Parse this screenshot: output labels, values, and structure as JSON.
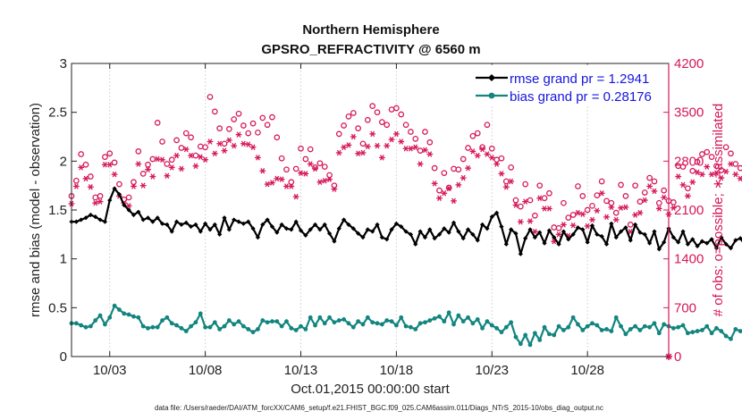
{
  "chart_data": {
    "type": "line",
    "title": [
      "Northern Hemisphere",
      "GPSRO_REFRACTIVITY @ 6560 m"
    ],
    "xlabel": "Oct.01,2015 00:00:00 start",
    "ylabel_left": "rmse and bias (model - observation)",
    "ylabel_right": "# of obs: o=possible; ∗=assimilated",
    "footnote": "data file: /Users/raeder/DAI/ATM_forcXX/CAM6_setup/f.e21.FHIST_BGC.f09_025.CAM6assim.011/Diags_NTrS_2015-10/obs_diag_output.nc",
    "x_range": [
      1.0,
      32.25
    ],
    "ylim_left": [
      0,
      3
    ],
    "ylim_right": [
      0,
      4200
    ],
    "x_ticks": [
      3,
      8,
      13,
      18,
      23,
      28
    ],
    "x_tick_labels": [
      "10/03",
      "10/08",
      "10/13",
      "10/18",
      "10/23",
      "10/28"
    ],
    "y_ticks_left": [
      0,
      0.5,
      1,
      1.5,
      2,
      2.5,
      3
    ],
    "y_tick_labels_left": [
      "0",
      "0.5",
      "1",
      "1.5",
      "2",
      "2.5",
      "3"
    ],
    "y_ticks_right": [
      0,
      700,
      1400,
      2100,
      2800,
      3500,
      4200
    ],
    "y_tick_labels_right": [
      "0",
      "700",
      "1400",
      "2100",
      "2800",
      "3500",
      "4200"
    ],
    "legend_location": "top-right",
    "x_start": 1.0,
    "x_step": 0.25,
    "series": [
      {
        "name": "rmse",
        "legend": "rmse grand pr = 1.2941",
        "color": "#000000",
        "marker": "diamond",
        "values": [
          1.38,
          1.38,
          1.4,
          1.42,
          1.45,
          1.43,
          1.4,
          1.38,
          1.6,
          1.72,
          1.66,
          1.55,
          1.5,
          1.45,
          1.48,
          1.4,
          1.42,
          1.38,
          1.42,
          1.36,
          1.35,
          1.28,
          1.38,
          1.35,
          1.37,
          1.33,
          1.35,
          1.28,
          1.36,
          1.3,
          1.35,
          1.25,
          1.42,
          1.3,
          1.4,
          1.38,
          1.36,
          1.38,
          1.31,
          1.22,
          1.35,
          1.4,
          1.33,
          1.27,
          1.35,
          1.31,
          1.3,
          1.38,
          1.29,
          1.24,
          1.3,
          1.35,
          1.3,
          1.35,
          1.26,
          1.18,
          1.31,
          1.4,
          1.35,
          1.31,
          1.26,
          1.22,
          1.3,
          1.28,
          1.35,
          1.22,
          1.2,
          1.3,
          1.36,
          1.33,
          1.28,
          1.25,
          1.15,
          1.28,
          1.22,
          1.3,
          1.21,
          1.25,
          1.31,
          1.27,
          1.37,
          1.28,
          1.21,
          1.3,
          1.25,
          1.19,
          1.35,
          1.31,
          1.43,
          1.47,
          1.33,
          1.15,
          1.3,
          1.26,
          1.05,
          1.21,
          1.3,
          1.22,
          1.27,
          1.16,
          1.29,
          1.22,
          1.15,
          1.28,
          1.2,
          1.25,
          1.32,
          1.3,
          1.17,
          1.34,
          1.25,
          1.23,
          1.15,
          1.36,
          1.22,
          1.28,
          1.32,
          1.19,
          1.35,
          1.27,
          1.25,
          1.16,
          1.28,
          1.1,
          1.17,
          1.31,
          1.22,
          1.17,
          1.28,
          1.15,
          1.2,
          1.13,
          1.18,
          1.16,
          1.2,
          1.11,
          1.22,
          1.15,
          1.11,
          1.19,
          1.21,
          1.14,
          1.16,
          1.08,
          1.23,
          1.15,
          1.12,
          1.07,
          1.17,
          1.12,
          1.14,
          1.16,
          1.23,
          1.16,
          1.2,
          1.11,
          1.06,
          1.05
        ]
      },
      {
        "name": "bias",
        "legend": "bias grand pr = 0.28176",
        "color": "#12857f",
        "marker": "circle",
        "values": [
          0.34,
          0.34,
          0.32,
          0.3,
          0.31,
          0.37,
          0.42,
          0.33,
          0.4,
          0.52,
          0.48,
          0.44,
          0.43,
          0.41,
          0.4,
          0.31,
          0.29,
          0.3,
          0.3,
          0.37,
          0.4,
          0.34,
          0.32,
          0.29,
          0.26,
          0.31,
          0.35,
          0.44,
          0.3,
          0.3,
          0.35,
          0.28,
          0.31,
          0.37,
          0.33,
          0.36,
          0.31,
          0.28,
          0.25,
          0.28,
          0.37,
          0.35,
          0.36,
          0.36,
          0.31,
          0.36,
          0.29,
          0.27,
          0.31,
          0.28,
          0.4,
          0.32,
          0.4,
          0.34,
          0.4,
          0.35,
          0.37,
          0.38,
          0.34,
          0.3,
          0.36,
          0.33,
          0.4,
          0.35,
          0.34,
          0.33,
          0.37,
          0.36,
          0.32,
          0.4,
          0.31,
          0.3,
          0.28,
          0.34,
          0.35,
          0.37,
          0.39,
          0.41,
          0.36,
          0.45,
          0.33,
          0.42,
          0.36,
          0.4,
          0.34,
          0.38,
          0.29,
          0.36,
          0.32,
          0.29,
          0.25,
          0.3,
          0.35,
          0.2,
          0.13,
          0.22,
          0.12,
          0.24,
          0.17,
          0.3,
          0.23,
          0.22,
          0.31,
          0.27,
          0.3,
          0.4,
          0.33,
          0.27,
          0.31,
          0.34,
          0.32,
          0.27,
          0.28,
          0.26,
          0.4,
          0.31,
          0.23,
          0.28,
          0.31,
          0.27,
          0.31,
          0.3,
          0.34,
          0.24,
          0.33,
          0.31,
          0.29,
          0.3,
          0.32,
          0.24,
          0.25,
          0.26,
          0.27,
          0.31,
          0.24,
          0.29,
          0.26,
          0.21,
          0.18,
          0.28,
          0.26,
          0.24,
          0.21,
          0.22,
          0.28,
          0.31,
          0.22,
          0.34,
          0.29,
          0.3,
          0.27,
          0.32,
          0.25,
          0.23,
          0.28,
          0.29,
          0.31,
          0.33
        ]
      },
      {
        "name": "possible",
        "axis": "right",
        "color": "#d6175a",
        "marker": "circle-open",
        "values": [
          2300,
          2520,
          2900,
          2750,
          2580,
          2280,
          2300,
          2860,
          2910,
          2780,
          2470,
          2250,
          2280,
          2500,
          2940,
          2620,
          2750,
          2830,
          3350,
          3080,
          2760,
          2820,
          3100,
          2990,
          3200,
          3140,
          2880,
          3010,
          3000,
          3720,
          3510,
          3270,
          3050,
          3260,
          3400,
          3480,
          3310,
          3200,
          3340,
          3210,
          3420,
          3320,
          3430,
          3140,
          2840,
          2680,
          2500,
          2690,
          2980,
          2830,
          2970,
          2710,
          2770,
          2720,
          2600,
          2450,
          3190,
          3310,
          3440,
          3490,
          3270,
          3050,
          3390,
          3590,
          3500,
          3360,
          3320,
          3540,
          3560,
          3470,
          3320,
          3220,
          3120,
          2950,
          3220,
          3070,
          2700,
          2380,
          2630,
          2420,
          2690,
          2680,
          2830,
          2990,
          3160,
          3200,
          3000,
          3320,
          2980,
          2820,
          2840,
          2510,
          2710,
          2240,
          2150,
          2470,
          2240,
          2020,
          2450,
          2270,
          2340,
          1850,
          1840,
          2200,
          1990,
          2030,
          2440,
          2300,
          2100,
          2160,
          2310,
          2510,
          2230,
          2200,
          2060,
          2460,
          2300,
          1890,
          2450,
          2220,
          2350,
          2560,
          2510,
          2200,
          2380,
          2230,
          2210,
          2730,
          2720,
          2410,
          2660,
          2790,
          2900,
          2930,
          2860,
          2730,
          2670,
          3000,
          2910,
          2760,
          2700,
          2560,
          2780,
          2850,
          2820,
          2770,
          2720,
          2760,
          2650,
          2480,
          2340,
          2390,
          2510,
          2480,
          2440,
          2770,
          2480
        ]
      },
      {
        "name": "assimilated",
        "axis": "right",
        "color": "#d6175a",
        "marker": "asterisk",
        "values": [
          2190,
          2440,
          2710,
          2550,
          2430,
          2200,
          2220,
          2750,
          2750,
          2610,
          2300,
          2200,
          2160,
          2440,
          2760,
          2450,
          2680,
          2580,
          2830,
          2820,
          2590,
          2710,
          2880,
          2690,
          2970,
          2880,
          2730,
          2860,
          2820,
          3080,
          2910,
          3050,
          2950,
          3100,
          3020,
          3180,
          3050,
          3040,
          3000,
          2850,
          2660,
          2470,
          2490,
          2550,
          2540,
          2440,
          2440,
          2290,
          2630,
          2620,
          2760,
          2690,
          2500,
          2520,
          2540,
          2400,
          2920,
          3000,
          3030,
          3150,
          2910,
          2920,
          3010,
          3190,
          3020,
          2850,
          3020,
          3110,
          3190,
          3080,
          2980,
          2980,
          3000,
          2760,
          2960,
          2900,
          2480,
          2270,
          2340,
          2410,
          2230,
          2460,
          2560,
          2700,
          2940,
          2880,
          2970,
          2900,
          2850,
          2760,
          2620,
          2430,
          2510,
          2170,
          1930,
          2220,
          1940,
          1790,
          2270,
          2120,
          2120,
          1650,
          1750,
          1890,
          1730,
          1880,
          2060,
          2040,
          1870,
          1960,
          2090,
          2340,
          2000,
          2140,
          1960,
          2130,
          2140,
          1790,
          2030,
          2060,
          2240,
          2440,
          2370,
          2120,
          2280,
          2040,
          2130,
          2580,
          2460,
          2300,
          2500,
          2640,
          2610,
          2720,
          2610,
          2630,
          2560,
          2650,
          2760,
          2610,
          2550,
          2440,
          2640,
          2680,
          2640,
          2550,
          2610,
          2600,
          2520,
          2410,
          2190,
          2290,
          2400,
          2360,
          2320,
          2620,
          2390
        ]
      }
    ]
  }
}
